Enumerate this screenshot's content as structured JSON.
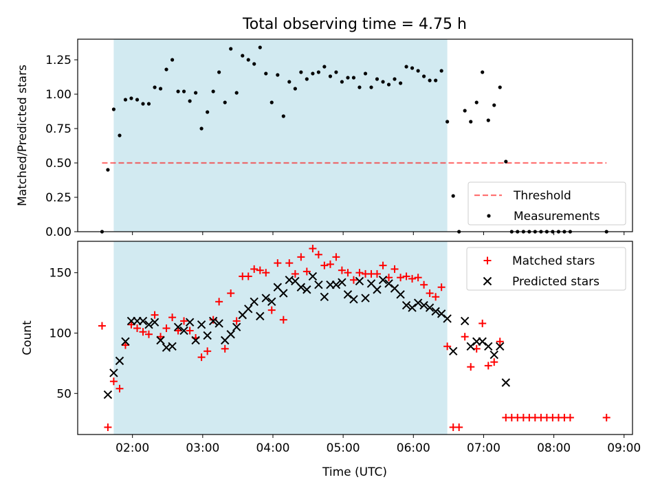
{
  "title": "Total observing time = 4.75 h",
  "xlabel": "Time (UTC)",
  "xticks": [
    "02:00",
    "03:00",
    "04:00",
    "05:00",
    "06:00",
    "07:00",
    "08:00",
    "09:00"
  ],
  "colors": {
    "shade": "#add8e6",
    "threshold": "#ff0000",
    "measurements": "#000000",
    "matched": "#ff0000",
    "predicted": "#000000"
  },
  "chart_data": [
    {
      "type": "scatter",
      "ylabel": "Matched/Predicted stars",
      "xlim": [
        1.22,
        9.12
      ],
      "ylim": [
        0,
        1.4
      ],
      "yticks": [
        "0.00",
        "0.25",
        "0.50",
        "0.75",
        "1.00",
        "1.25"
      ],
      "shaded_span": [
        1.733,
        6.483
      ],
      "legend": {
        "position": "lower right",
        "entries": [
          "Threshold",
          "Measurements"
        ]
      },
      "threshold": {
        "name": "Threshold",
        "y": 0.5,
        "x": [
          1.567,
          8.75
        ],
        "style": "dashed"
      },
      "series": [
        {
          "name": "Measurements",
          "marker": "dot",
          "points": [
            [
              1.567,
              0.0
            ],
            [
              1.65,
              0.45
            ],
            [
              1.733,
              0.89
            ],
            [
              1.817,
              0.7
            ],
            [
              1.9,
              0.96
            ],
            [
              1.983,
              0.97
            ],
            [
              2.067,
              0.96
            ],
            [
              2.15,
              0.93
            ],
            [
              2.233,
              0.93
            ],
            [
              2.317,
              1.05
            ],
            [
              2.4,
              1.04
            ],
            [
              2.483,
              1.18
            ],
            [
              2.567,
              1.25
            ],
            [
              2.65,
              1.02
            ],
            [
              2.733,
              1.02
            ],
            [
              2.817,
              0.95
            ],
            [
              2.9,
              1.01
            ],
            [
              2.983,
              0.75
            ],
            [
              3.067,
              0.87
            ],
            [
              3.15,
              1.02
            ],
            [
              3.233,
              1.16
            ],
            [
              3.317,
              0.94
            ],
            [
              3.4,
              1.33
            ],
            [
              3.483,
              1.01
            ],
            [
              3.567,
              1.28
            ],
            [
              3.65,
              1.25
            ],
            [
              3.733,
              1.22
            ],
            [
              3.817,
              1.34
            ],
            [
              3.9,
              1.15
            ],
            [
              3.983,
              0.94
            ],
            [
              4.067,
              1.14
            ],
            [
              4.15,
              0.84
            ],
            [
              4.233,
              1.09
            ],
            [
              4.317,
              1.04
            ],
            [
              4.4,
              1.16
            ],
            [
              4.483,
              1.11
            ],
            [
              4.567,
              1.15
            ],
            [
              4.65,
              1.16
            ],
            [
              4.733,
              1.2
            ],
            [
              4.817,
              1.13
            ],
            [
              4.9,
              1.16
            ],
            [
              4.983,
              1.09
            ],
            [
              5.067,
              1.12
            ],
            [
              5.15,
              1.12
            ],
            [
              5.233,
              1.05
            ],
            [
              5.317,
              1.15
            ],
            [
              5.4,
              1.05
            ],
            [
              5.483,
              1.11
            ],
            [
              5.567,
              1.09
            ],
            [
              5.65,
              1.07
            ],
            [
              5.733,
              1.11
            ],
            [
              5.817,
              1.08
            ],
            [
              5.9,
              1.2
            ],
            [
              5.983,
              1.19
            ],
            [
              6.067,
              1.17
            ],
            [
              6.15,
              1.13
            ],
            [
              6.233,
              1.1
            ],
            [
              6.317,
              1.1
            ],
            [
              6.4,
              1.17
            ],
            [
              6.483,
              0.8
            ],
            [
              6.567,
              0.26
            ],
            [
              6.65,
              0.0
            ],
            [
              6.733,
              0.88
            ],
            [
              6.817,
              0.8
            ],
            [
              6.9,
              0.94
            ],
            [
              6.983,
              1.16
            ],
            [
              7.067,
              0.81
            ],
            [
              7.15,
              0.92
            ],
            [
              7.233,
              1.05
            ],
            [
              7.317,
              0.51
            ],
            [
              7.4,
              0.0
            ],
            [
              7.483,
              0.0
            ],
            [
              7.567,
              0.0
            ],
            [
              7.65,
              0.0
            ],
            [
              7.733,
              0.0
            ],
            [
              7.817,
              0.0
            ],
            [
              7.9,
              0.0
            ],
            [
              7.983,
              0.0
            ],
            [
              8.067,
              0.0
            ],
            [
              8.15,
              0.0
            ],
            [
              8.233,
              0.0
            ],
            [
              8.75,
              0.0
            ]
          ]
        }
      ]
    },
    {
      "type": "scatter",
      "ylabel": "Count",
      "xlim": [
        1.22,
        9.12
      ],
      "ylim": [
        16,
        176
      ],
      "yticks": [
        "50",
        "100",
        "150"
      ],
      "shaded_span": [
        1.733,
        6.483
      ],
      "legend": {
        "position": "upper right",
        "entries": [
          "Matched stars",
          "Predicted stars"
        ]
      },
      "series": [
        {
          "name": "Matched stars",
          "marker": "plus",
          "points": [
            [
              1.567,
              106
            ],
            [
              1.65,
              22
            ],
            [
              1.733,
              60
            ],
            [
              1.817,
              54
            ],
            [
              1.9,
              90
            ],
            [
              1.983,
              107
            ],
            [
              2.067,
              104
            ],
            [
              2.15,
              101
            ],
            [
              2.233,
              99
            ],
            [
              2.317,
              115
            ],
            [
              2.4,
              97
            ],
            [
              2.483,
              104
            ],
            [
              2.567,
              113
            ],
            [
              2.65,
              102
            ],
            [
              2.733,
              110
            ],
            [
              2.817,
              102
            ],
            [
              2.9,
              96
            ],
            [
              2.983,
              80
            ],
            [
              3.067,
              85
            ],
            [
              3.15,
              111
            ],
            [
              3.233,
              126
            ],
            [
              3.317,
              87
            ],
            [
              3.4,
              133
            ],
            [
              3.483,
              110
            ],
            [
              3.567,
              147
            ],
            [
              3.65,
              147
            ],
            [
              3.733,
              153
            ],
            [
              3.817,
              152
            ],
            [
              3.9,
              150
            ],
            [
              3.983,
              119
            ],
            [
              4.067,
              158
            ],
            [
              4.15,
              111
            ],
            [
              4.233,
              158
            ],
            [
              4.317,
              149
            ],
            [
              4.4,
              163
            ],
            [
              4.483,
              151
            ],
            [
              4.567,
              170
            ],
            [
              4.65,
              165
            ],
            [
              4.733,
              156
            ],
            [
              4.817,
              157
            ],
            [
              4.9,
              163
            ],
            [
              4.983,
              152
            ],
            [
              5.067,
              150
            ],
            [
              5.15,
              144
            ],
            [
              5.233,
              150
            ],
            [
              5.317,
              149
            ],
            [
              5.4,
              149
            ],
            [
              5.483,
              149
            ],
            [
              5.567,
              156
            ],
            [
              5.65,
              146
            ],
            [
              5.733,
              153
            ],
            [
              5.817,
              146
            ],
            [
              5.9,
              147
            ],
            [
              5.983,
              145
            ],
            [
              6.067,
              146
            ],
            [
              6.15,
              140
            ],
            [
              6.233,
              133
            ],
            [
              6.317,
              130
            ],
            [
              6.4,
              138
            ],
            [
              6.483,
              89
            ],
            [
              6.567,
              22
            ],
            [
              6.65,
              22
            ],
            [
              6.733,
              97
            ],
            [
              6.817,
              72
            ],
            [
              6.9,
              87
            ],
            [
              6.983,
              108
            ],
            [
              7.067,
              73
            ],
            [
              7.15,
              76
            ],
            [
              7.233,
              93
            ],
            [
              7.317,
              30
            ],
            [
              7.4,
              30
            ],
            [
              7.483,
              30
            ],
            [
              7.567,
              30
            ],
            [
              7.65,
              30
            ],
            [
              7.733,
              30
            ],
            [
              7.817,
              30
            ],
            [
              7.9,
              30
            ],
            [
              7.983,
              30
            ],
            [
              8.067,
              30
            ],
            [
              8.15,
              30
            ],
            [
              8.233,
              30
            ],
            [
              8.75,
              30
            ]
          ]
        },
        {
          "name": "Predicted stars",
          "marker": "x",
          "points": [
            [
              1.65,
              49
            ],
            [
              1.733,
              67
            ],
            [
              1.817,
              77
            ],
            [
              1.9,
              93
            ],
            [
              1.983,
              110
            ],
            [
              2.067,
              110
            ],
            [
              2.15,
              110
            ],
            [
              2.233,
              107
            ],
            [
              2.317,
              109
            ],
            [
              2.4,
              94
            ],
            [
              2.483,
              88
            ],
            [
              2.567,
              89
            ],
            [
              2.65,
              105
            ],
            [
              2.733,
              102
            ],
            [
              2.817,
              109
            ],
            [
              2.9,
              94
            ],
            [
              2.983,
              107
            ],
            [
              3.067,
              98
            ],
            [
              3.15,
              110
            ],
            [
              3.233,
              108
            ],
            [
              3.317,
              94
            ],
            [
              3.4,
              99
            ],
            [
              3.483,
              105
            ],
            [
              3.567,
              115
            ],
            [
              3.65,
              120
            ],
            [
              3.733,
              126
            ],
            [
              3.817,
              114
            ],
            [
              3.9,
              129
            ],
            [
              3.983,
              126
            ],
            [
              4.067,
              138
            ],
            [
              4.15,
              133
            ],
            [
              4.233,
              144
            ],
            [
              4.317,
              143
            ],
            [
              4.4,
              138
            ],
            [
              4.483,
              136
            ],
            [
              4.567,
              147
            ],
            [
              4.65,
              140
            ],
            [
              4.733,
              130
            ],
            [
              4.817,
              140
            ],
            [
              4.9,
              140
            ],
            [
              4.983,
              142
            ],
            [
              5.067,
              132
            ],
            [
              5.15,
              128
            ],
            [
              5.233,
              143
            ],
            [
              5.317,
              129
            ],
            [
              5.4,
              141
            ],
            [
              5.483,
              136
            ],
            [
              5.567,
              144
            ],
            [
              5.65,
              141
            ],
            [
              5.733,
              137
            ],
            [
              5.817,
              132
            ],
            [
              5.9,
              123
            ],
            [
              5.983,
              121
            ],
            [
              6.067,
              125
            ],
            [
              6.15,
              123
            ],
            [
              6.233,
              121
            ],
            [
              6.317,
              118
            ],
            [
              6.4,
              116
            ],
            [
              6.483,
              112
            ],
            [
              6.567,
              85
            ],
            [
              6.733,
              110
            ],
            [
              6.817,
              89
            ],
            [
              6.9,
              93
            ],
            [
              6.983,
              93
            ],
            [
              7.067,
              89
            ],
            [
              7.15,
              82
            ],
            [
              7.233,
              89
            ],
            [
              7.317,
              59
            ]
          ]
        }
      ]
    }
  ]
}
